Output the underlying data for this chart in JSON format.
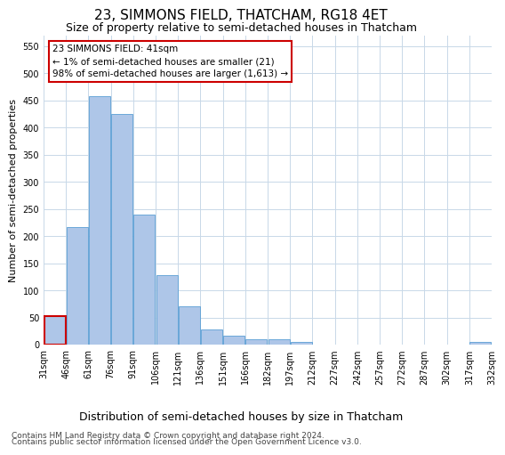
{
  "title": "23, SIMMONS FIELD, THATCHAM, RG18 4ET",
  "subtitle": "Size of property relative to semi-detached houses in Thatcham",
  "xlabel": "Distribution of semi-detached houses by size in Thatcham",
  "ylabel": "Number of semi-detached properties",
  "footer_line1": "Contains HM Land Registry data © Crown copyright and database right 2024.",
  "footer_line2": "Contains public sector information licensed under the Open Government Licence v3.0.",
  "annotation_title": "23 SIMMONS FIELD: 41sqm",
  "annotation_line1": "← 1% of semi-detached houses are smaller (21)",
  "annotation_line2": "98% of semi-detached houses are larger (1,613) →",
  "bar_values": [
    52,
    217,
    458,
    425,
    240,
    128,
    70,
    28,
    16,
    10,
    10,
    5,
    0,
    0,
    0,
    0,
    0,
    0,
    0,
    5
  ],
  "bin_labels": [
    "31sqm",
    "46sqm",
    "61sqm",
    "76sqm",
    "91sqm",
    "106sqm",
    "121sqm",
    "136sqm",
    "151sqm",
    "166sqm",
    "182sqm",
    "197sqm",
    "212sqm",
    "227sqm",
    "242sqm",
    "257sqm",
    "272sqm",
    "287sqm",
    "302sqm",
    "317sqm",
    "332sqm"
  ],
  "ylim": [
    0,
    570
  ],
  "yticks": [
    0,
    50,
    100,
    150,
    200,
    250,
    300,
    350,
    400,
    450,
    500,
    550
  ],
  "bar_color": "#aec6e8",
  "bar_edge_color": "#5a9fd4",
  "highlight_bar_index": 0,
  "highlight_edge_color": "#cc0000",
  "background_color": "#ffffff",
  "grid_color": "#c8d8e8",
  "title_fontsize": 11,
  "subtitle_fontsize": 9,
  "ylabel_fontsize": 8,
  "xlabel_fontsize": 9,
  "tick_fontsize": 7,
  "annotation_fontsize": 7.5,
  "footer_fontsize": 6.5
}
